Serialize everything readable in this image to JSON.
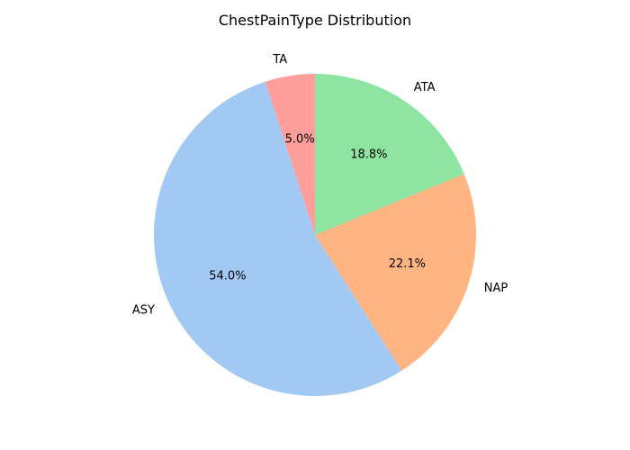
{
  "chart_data": {
    "type": "pie",
    "title": "ChestPainType Distribution",
    "start_angle_deg": 90,
    "direction": "counterclockwise",
    "slices": [
      {
        "label": "TA",
        "value": 5.0,
        "pct_label": "5.0%",
        "color": "#ff9f9b"
      },
      {
        "label": "ASY",
        "value": 54.0,
        "pct_label": "54.0%",
        "color": "#a1c9f4"
      },
      {
        "label": "NAP",
        "value": 22.1,
        "pct_label": "22.1%",
        "color": "#ffb482"
      },
      {
        "label": "ATA",
        "value": 18.8,
        "pct_label": "18.8%",
        "color": "#8de5a1"
      }
    ]
  }
}
